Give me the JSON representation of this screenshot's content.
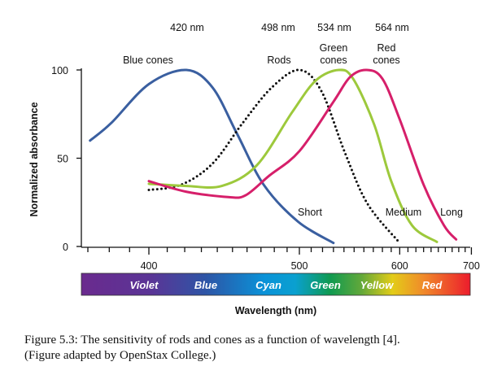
{
  "chart_data": {
    "type": "line",
    "xlabel": "Wavelength (nm)",
    "ylabel": "Normalized absorbance",
    "xscale": "reciprocal",
    "xlim": [
      370,
      700
    ],
    "ylim": [
      0,
      100
    ],
    "x_ticks": [
      400,
      500,
      600,
      700
    ],
    "y_ticks": [
      0,
      50,
      100
    ],
    "grid": false,
    "peak_labels": [
      "420 nm",
      "498 nm",
      "534 nm",
      "564 nm"
    ],
    "series": [
      {
        "name": "Blue cones",
        "end_label": "Short",
        "color": "#3a5fa0",
        "style": "solid",
        "x": [
          371,
          381,
          400,
          421,
          437,
          453,
          472,
          499,
          530
        ],
        "y": [
          60,
          70,
          92,
          100,
          90,
          64,
          35,
          14,
          2
        ]
      },
      {
        "name": "Rods",
        "end_label": "",
        "color": "#111111",
        "style": "dotted",
        "x": [
          400,
          418,
          437,
          457,
          478,
          500,
          519,
          541,
          564,
          600
        ],
        "y": [
          32,
          35,
          47,
          70,
          90,
          100,
          88,
          53,
          24,
          2
        ]
      },
      {
        "name": "Green cones",
        "end_label": "Medium",
        "color": "#9dc93c",
        "style": "solid",
        "x": [
          400,
          421,
          443,
          467,
          494,
          514,
          535,
          549,
          571,
          590,
          615,
          648
        ],
        "y": [
          35.5,
          34.3,
          34.3,
          46,
          76,
          94,
          100,
          95,
          69,
          37,
          12,
          2.6
        ]
      },
      {
        "name": "Red cones",
        "end_label": "Long",
        "color": "#d61f6a",
        "style": "solid",
        "x": [
          400,
          421,
          447,
          459,
          476,
          500,
          530,
          546,
          563,
          580,
          600,
          630,
          658,
          676
        ],
        "y": [
          37,
          31,
          28,
          29,
          40,
          54,
          82,
          96,
          100,
          95,
          72,
          35,
          12,
          4
        ]
      }
    ],
    "series_label_lines": {
      "blue": [
        "Blue cones"
      ],
      "rods": [
        "Rods"
      ],
      "green": [
        "Green",
        "cones"
      ],
      "red": [
        "Red",
        "cones"
      ]
    },
    "spectrum_bands": [
      "Violet",
      "Blue",
      "Cyan",
      "Green",
      "Yellow",
      "Red"
    ]
  },
  "caption": {
    "line1": "Figure 5.3:  The sensitivity of rods and cones as a function of wavelength [4].",
    "line2": "(Figure adapted by OpenStax College.)"
  }
}
